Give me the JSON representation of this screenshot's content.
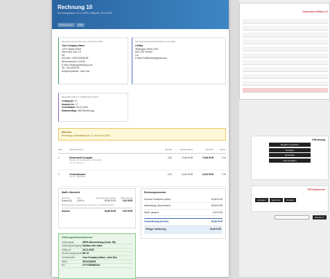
{
  "header": {
    "title": "Rechnung 10",
    "subtitle": "Rechnungsdatum: 16.12.2025 | Fällig am: 26.12.2025",
    "badges": [
      "Rechnung 1.0",
      "EUR"
    ]
  },
  "seller": {
    "heading": "RECHNUNGSSTELLER (VERKÄUFER)",
    "name": "Your Company Name",
    "lines": [
      "123 E Maple Street",
      "90xxx Any City, CA",
      "DE",
      "USt-IdNr.: DE0123456789",
      "Steuernummer: 123/45",
      "E-Mail: info@mywebshop.com",
      "Tel.: 2141494752",
      "Ansprechpartner: John Doe"
    ]
  },
  "buyer": {
    "heading": "RECHNUNGSEMPFÄNGER (KÄUFER)",
    "name": "Lielkay",
    "lines": [
      "Wellington Street 2402",
      "M4C 5J3 Toronto",
      "CA",
      "E-Mail: Pattikhalen@gmail.com"
    ]
  },
  "references": {
    "heading": "REFERENZEN & VERBINDUNGEN",
    "items": [
      {
        "label": "Leitweg-ID:",
        "value": "17"
      },
      {
        "label": "Kunden-Nr.:",
        "value": "17"
      },
      {
        "label": "Lieferdatum:",
        "value": "16.12.2025"
      },
      {
        "label": "Dokumenttyp:",
        "value": "380 (Rechnung)"
      }
    ]
  },
  "notes": {
    "heading": "Hinweise",
    "text": "Rechnung zu Bestellung Nr. 17 vom 24.03.2023"
  },
  "items_table": {
    "columns": [
      "POS.",
      "BEZEICHNUNG",
      "MENGE",
      "EINZELPREIS",
      "GESAMT",
      "MWST."
    ],
    "rows": [
      {
        "pos": "1",
        "name": "Kinderstuhl Kompakt",
        "desc": [
          "Bekannter und bequemer Kinderstuhl",
          "Art.-Nr.: demo_5"
        ],
        "qty": "1,00",
        "unit": "73,66 EUR",
        "total": "73,66 EUR",
        "vat": "0 %"
      },
      {
        "pos": "2",
        "name": "Versandkosten",
        "desc": [
          "Art.-Nr.: SHIPPING"
        ],
        "qty": "1,00",
        "unit": "10,00 EUR",
        "total": "10,00 EUR",
        "vat": "0 %"
      }
    ]
  },
  "vat": {
    "heading": "MwSt.-Übersicht",
    "columns": [
      "Kategorie",
      "Satz",
      "Bemessungsgrundlage",
      "MwSt.-Betrag"
    ],
    "rows": [
      [
        "Export (G)",
        "0,00 %",
        "83,66 EUR",
        "0,00 EUR"
      ]
    ],
    "note": "Befreiungsgrund: Steuerbefreite Lieferungen ins Drittland (Export)",
    "total": [
      "Summe",
      "83,66 EUR",
      "0,00 EUR"
    ]
  },
  "totals": {
    "heading": "Rechnungssummen",
    "rows": [
      {
        "label": "Summe Positionen (netto)",
        "value": "83,66 EUR"
      },
      {
        "label": "Nettobetrag (Steuerbasis)",
        "value": "83,66 EUR"
      },
      {
        "label": "MwSt. gesamt",
        "value": "0,00 EUR"
      }
    ],
    "gross": {
      "label": "Gesamtbetrag (brutto)",
      "value": "83,66 EUR"
    },
    "due": {
      "label": "Fälliger Zahlbetrag",
      "value": "83,66 EUR"
    }
  },
  "payment": {
    "heading": "Zahlungsinformationen",
    "rows": [
      {
        "label": "Zahlungsart",
        "value": "SEPA-Überweisung (Code: 58)"
      },
      {
        "label": "Zahlungsbedingung",
        "value": "Zahlbar sein netto."
      },
      {
        "label": "Fällig am",
        "value": "26.12.2025"
      },
      {
        "label": "Verwendungszweck",
        "value": "RE 10"
      },
      {
        "label": "Kontoinhaber",
        "value": "Your Company Name, John Doe"
      },
      {
        "label": "IBAN",
        "value": "DE12345678"
      },
      {
        "label": "BIC",
        "value": "XYYYDEMMXXX"
      }
    ]
  },
  "app": {
    "edition": "Commodore Edition 1.0",
    "xrechnung": {
      "title": "X-Rechnung",
      "buttons": [
        "Eingaben speichern",
        "Anzeigen",
        "Versenden",
        "Herunterladen"
      ]
    },
    "pdf": {
      "title": "PDF-Dokumente",
      "buttons": [
        "Anzeigen",
        "Speichern",
        "Drucken"
      ]
    },
    "save": "Speichern"
  }
}
